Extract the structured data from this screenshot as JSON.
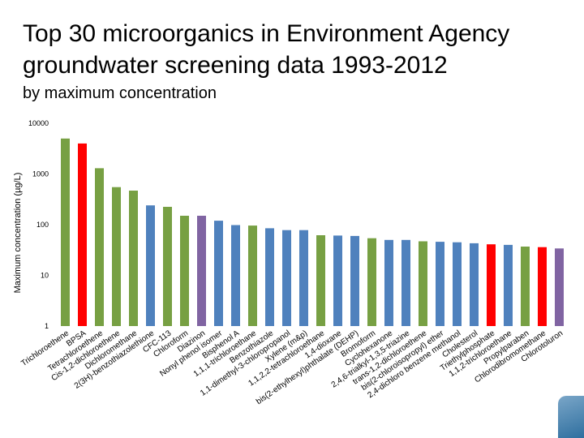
{
  "slide": {
    "title": "Top 30 microorganics in Environment Agency groundwater screening data 1993-2012",
    "subtitle": "by maximum concentration"
  },
  "colors": {
    "green": "#77a043",
    "red": "#ff0000",
    "blue": "#4f81bd",
    "purple": "#8064a2"
  },
  "chart_data": {
    "type": "bar",
    "ylabel": "Maximum concentration (µg/L)",
    "yscale": "log",
    "ylim": [
      1,
      10000
    ],
    "yticks": [
      "1",
      "10",
      "100",
      "1000",
      "10000"
    ],
    "grid": false,
    "categories": [
      "Trichloroethene",
      "BPSA",
      "Tetrachloroethene",
      "Cis-1,2-dichloroethene",
      "Dichloromethane",
      "2(3H)-benzothiazolethione",
      "CFC-113",
      "Chloroform",
      "Diazinon",
      "Nonyl phenol isomer",
      "Bisphenol A",
      "1,1,1-trichloroethane",
      "Benzothiazole",
      "1,1-dimethyl-3-chloropropanol",
      "Xylene (m&p)",
      "1,1,2,2-tetrachloroethane",
      "1,4-dioxane",
      "bis(2-ethylhexyl)phthalate (DEHP)",
      "Bromoform",
      "Cyclohexanone",
      "2,4,6-trialkyl-1,3,5-triazine",
      "trans-1,2-dichloroethene",
      "bis(2-chloroisopropyl) ether",
      "2,4-dichloro benzene methanol",
      "Cholesterol",
      "Triethylphosphate",
      "1,1,2-trichloroethane",
      "Propylparaben",
      "Chlorodibromomethane",
      "Chlorotoluron"
    ],
    "values": [
      5000,
      4000,
      1300,
      550,
      470,
      240,
      225,
      150,
      150,
      120,
      98,
      96,
      85,
      78,
      78,
      62,
      61,
      60,
      54,
      50,
      50,
      47,
      46,
      45,
      43,
      41,
      40,
      37,
      36,
      34
    ],
    "bar_colors": [
      "green",
      "red",
      "green",
      "green",
      "green",
      "blue",
      "green",
      "green",
      "purple",
      "blue",
      "blue",
      "green",
      "blue",
      "blue",
      "blue",
      "green",
      "blue",
      "blue",
      "green",
      "blue",
      "blue",
      "green",
      "blue",
      "blue",
      "blue",
      "red",
      "blue",
      "green",
      "red",
      "purple"
    ]
  }
}
